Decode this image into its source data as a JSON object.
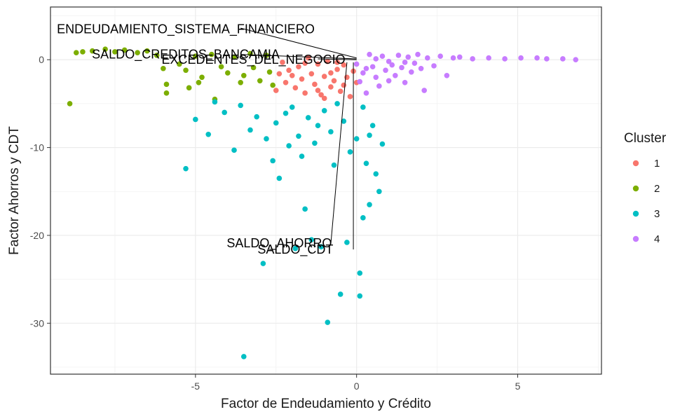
{
  "chart_data": {
    "type": "scatter",
    "xlabel": "Factor de Endeudamiento y Crédito",
    "ylabel": "Factor Ahorros y CDT",
    "xlim": [
      -9.5,
      7.6
    ],
    "ylim": [
      -35.8,
      6
    ],
    "x_ticks": [
      -5,
      0,
      5
    ],
    "y_ticks": [
      0,
      -10,
      -20,
      -30
    ],
    "grid": true,
    "legend": {
      "title": "Cluster",
      "position": "right"
    },
    "series": [
      {
        "name": "1",
        "color": "#F8766D",
        "points": [
          [
            -2.3,
            -0.3
          ],
          [
            -2.1,
            -1.2
          ],
          [
            -1.9,
            -3.2
          ],
          [
            -1.8,
            -0.8
          ],
          [
            -1.7,
            -2.2
          ],
          [
            -1.6,
            -3.8
          ],
          [
            -1.5,
            0.2
          ],
          [
            -1.4,
            -1.6
          ],
          [
            -1.3,
            -2.8
          ],
          [
            -1.2,
            -0.5
          ],
          [
            -1.1,
            -4.0
          ],
          [
            -1.0,
            -1.9
          ],
          [
            -0.9,
            -0.2
          ],
          [
            -0.8,
            -3.1
          ],
          [
            -0.7,
            -2.4
          ],
          [
            -0.6,
            -1.1
          ],
          [
            -0.5,
            -3.6
          ],
          [
            -0.4,
            -0.6
          ],
          [
            -0.3,
            -2.0
          ],
          [
            -0.2,
            -4.2
          ],
          [
            -0.1,
            -1.3
          ],
          [
            0.0,
            -2.6
          ],
          [
            -2.2,
            -2.6
          ],
          [
            -2.0,
            -1.8
          ],
          [
            -1.6,
            -0.4
          ],
          [
            -1.2,
            -3.5
          ],
          [
            -0.8,
            -1.5
          ],
          [
            -0.4,
            -2.9
          ],
          [
            -2.5,
            -3.5
          ],
          [
            -2.4,
            -1.6
          ],
          [
            -1.0,
            -4.4
          ],
          [
            -0.6,
            -0.3
          ]
        ]
      },
      {
        "name": "2",
        "color": "#7CAE00",
        "points": [
          [
            -8.9,
            -5.0
          ],
          [
            -8.7,
            0.8
          ],
          [
            -8.5,
            0.9
          ],
          [
            -8.2,
            1.0
          ],
          [
            -7.8,
            1.2
          ],
          [
            -7.5,
            0.9
          ],
          [
            -7.2,
            1.1
          ],
          [
            -6.8,
            0.8
          ],
          [
            -6.5,
            1.0
          ],
          [
            -6.2,
            0.5
          ],
          [
            -6.0,
            -1.0
          ],
          [
            -5.9,
            -2.8
          ],
          [
            -5.9,
            -3.8
          ],
          [
            -5.5,
            -0.5
          ],
          [
            -5.3,
            -1.2
          ],
          [
            -5.0,
            0.4
          ],
          [
            -4.8,
            -2.0
          ],
          [
            -4.5,
            0.6
          ],
          [
            -4.2,
            -0.8
          ],
          [
            -4.0,
            -1.5
          ],
          [
            -3.8,
            0.3
          ],
          [
            -3.5,
            -1.8
          ],
          [
            -3.2,
            -0.9
          ],
          [
            -3.0,
            -2.4
          ],
          [
            -2.8,
            0.5
          ],
          [
            -2.6,
            -2.9
          ],
          [
            -4.4,
            -4.5
          ],
          [
            -5.2,
            -3.2
          ],
          [
            -3.6,
            -2.6
          ],
          [
            -2.7,
            -1.4
          ],
          [
            -4.9,
            -2.6
          ],
          [
            -3.3,
            0.7
          ]
        ]
      },
      {
        "name": "3",
        "color": "#00BFC4",
        "points": [
          [
            -5.3,
            -12.4
          ],
          [
            -5.0,
            -6.8
          ],
          [
            -4.6,
            -8.5
          ],
          [
            -4.4,
            -4.8
          ],
          [
            -4.1,
            -6.0
          ],
          [
            -3.8,
            -10.3
          ],
          [
            -3.6,
            -5.2
          ],
          [
            -3.5,
            -33.8
          ],
          [
            -3.3,
            -8.0
          ],
          [
            -3.1,
            -6.5
          ],
          [
            -2.9,
            -23.2
          ],
          [
            -2.8,
            -9.0
          ],
          [
            -2.6,
            -11.5
          ],
          [
            -2.5,
            -7.2
          ],
          [
            -2.4,
            -13.5
          ],
          [
            -2.2,
            -6.1
          ],
          [
            -2.1,
            -9.8
          ],
          [
            -2.0,
            -5.4
          ],
          [
            -1.9,
            -21.5
          ],
          [
            -1.8,
            -8.7
          ],
          [
            -1.7,
            -11.0
          ],
          [
            -1.6,
            -17.0
          ],
          [
            -1.5,
            -6.6
          ],
          [
            -1.4,
            -20.5
          ],
          [
            -1.3,
            -9.5
          ],
          [
            -1.2,
            -7.5
          ],
          [
            -1.1,
            -21.3
          ],
          [
            -1.0,
            -5.8
          ],
          [
            -0.9,
            -29.9
          ],
          [
            -0.8,
            -8.2
          ],
          [
            -0.7,
            -12.0
          ],
          [
            -0.5,
            -26.7
          ],
          [
            -0.4,
            -7.0
          ],
          [
            -0.3,
            -20.8
          ],
          [
            -0.2,
            -10.5
          ],
          [
            0.0,
            -9.0
          ],
          [
            0.1,
            -24.3
          ],
          [
            0.1,
            -26.9
          ],
          [
            0.2,
            -18.0
          ],
          [
            0.3,
            -11.8
          ],
          [
            0.4,
            -16.5
          ],
          [
            0.5,
            -7.5
          ],
          [
            0.6,
            -13.0
          ],
          [
            0.7,
            -15.0
          ],
          [
            0.8,
            -9.6
          ],
          [
            -0.6,
            -5.0
          ],
          [
            0.2,
            -5.4
          ],
          [
            0.4,
            -8.6
          ]
        ]
      },
      {
        "name": "4",
        "color": "#C77CFF",
        "points": [
          [
            0.0,
            -0.5
          ],
          [
            0.1,
            -2.5
          ],
          [
            0.2,
            -1.5
          ],
          [
            0.3,
            -3.8
          ],
          [
            0.4,
            0.6
          ],
          [
            0.5,
            -0.8
          ],
          [
            0.6,
            -2.0
          ],
          [
            0.7,
            -3.0
          ],
          [
            0.8,
            0.4
          ],
          [
            0.9,
            -1.2
          ],
          [
            1.0,
            -2.4
          ],
          [
            1.1,
            -0.6
          ],
          [
            1.2,
            -1.8
          ],
          [
            1.3,
            0.5
          ],
          [
            1.4,
            -0.9
          ],
          [
            1.5,
            -2.6
          ],
          [
            1.6,
            0.3
          ],
          [
            1.7,
            -1.4
          ],
          [
            1.8,
            -0.4
          ],
          [
            1.9,
            0.6
          ],
          [
            2.0,
            -1.0
          ],
          [
            2.1,
            -3.5
          ],
          [
            2.2,
            0.2
          ],
          [
            2.4,
            -0.7
          ],
          [
            2.6,
            0.4
          ],
          [
            2.8,
            -1.8
          ],
          [
            3.0,
            0.2
          ],
          [
            3.2,
            0.3
          ],
          [
            3.6,
            0.1
          ],
          [
            4.1,
            0.2
          ],
          [
            4.6,
            0.1
          ],
          [
            5.1,
            0.2
          ],
          [
            5.6,
            0.2
          ],
          [
            5.9,
            0.1
          ],
          [
            6.4,
            0.1
          ],
          [
            6.8,
            0.0
          ],
          [
            0.3,
            -1.0
          ],
          [
            0.6,
            0.1
          ],
          [
            1.0,
            -0.2
          ],
          [
            1.5,
            -0.3
          ]
        ]
      }
    ],
    "annotations": [
      {
        "text": "ENDEUDAMIENTO_SISTEMA_FINANCIERO",
        "x": -5.3,
        "y": 3.5,
        "arrow_from": [
          -3.6,
          3.6
        ],
        "arrow_to": [
          0.0,
          0.2
        ]
      },
      {
        "text": "SALDO_CREDITOS_BANCAMIA",
        "x": -5.3,
        "y": 0.6,
        "arrow_from": [
          -3.6,
          0.6
        ],
        "arrow_to": [
          0.0,
          0.1
        ]
      },
      {
        "text": "EXCEDENTES_DEL_NEGOCIO",
        "x": -3.2,
        "y": 0.0,
        "arrow_from": [
          -1.2,
          0.1
        ],
        "arrow_to": [
          0.0,
          0.0
        ]
      },
      {
        "text": "SALDO_AHORRO",
        "x": -2.4,
        "y": -20.9,
        "arrow_from": [
          -0.8,
          -21.0
        ],
        "arrow_to": [
          -0.3,
          -0.3
        ]
      },
      {
        "text": "SALDO_CDT",
        "x": -1.9,
        "y": -21.6,
        "arrow_from": [
          -0.1,
          -21.6
        ],
        "arrow_to": [
          -0.1,
          -0.3
        ]
      }
    ]
  }
}
